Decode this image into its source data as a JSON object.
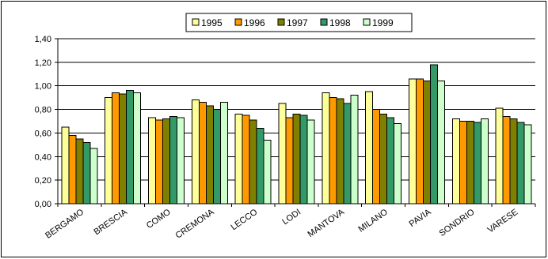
{
  "chart_data": {
    "type": "bar",
    "title": "",
    "xlabel": "",
    "ylabel": "",
    "ylim": [
      0,
      1.4
    ],
    "yticks": [
      "0,00",
      "0,20",
      "0,40",
      "0,60",
      "0,80",
      "1,00",
      "1,20",
      "1,40"
    ],
    "grid": true,
    "legend_position": "top-center",
    "categories": [
      "BERGAMO",
      "BRESCIA",
      "COMO",
      "CREMONA",
      "LECCO",
      "LODI",
      "MANTOVA",
      "MILANO",
      "PAVIA",
      "SONDRIO",
      "VARESE"
    ],
    "series": [
      {
        "name": "1995",
        "color": "#ffff99",
        "values": [
          0.65,
          0.9,
          0.73,
          0.88,
          0.76,
          0.85,
          0.94,
          0.95,
          1.06,
          0.72,
          0.81
        ]
      },
      {
        "name": "1996",
        "color": "#ff9900",
        "values": [
          0.58,
          0.94,
          0.71,
          0.86,
          0.75,
          0.73,
          0.9,
          0.8,
          1.06,
          0.7,
          0.74
        ]
      },
      {
        "name": "1997",
        "color": "#808000",
        "values": [
          0.55,
          0.93,
          0.72,
          0.83,
          0.71,
          0.76,
          0.89,
          0.76,
          1.04,
          0.7,
          0.72
        ]
      },
      {
        "name": "1998",
        "color": "#339966",
        "values": [
          0.52,
          0.96,
          0.74,
          0.8,
          0.64,
          0.75,
          0.85,
          0.73,
          1.18,
          0.69,
          0.69
        ]
      },
      {
        "name": "1999",
        "color": "#ccffcc",
        "values": [
          0.47,
          0.94,
          0.73,
          0.86,
          0.54,
          0.71,
          0.92,
          0.68,
          1.04,
          0.72,
          0.67
        ]
      }
    ]
  }
}
